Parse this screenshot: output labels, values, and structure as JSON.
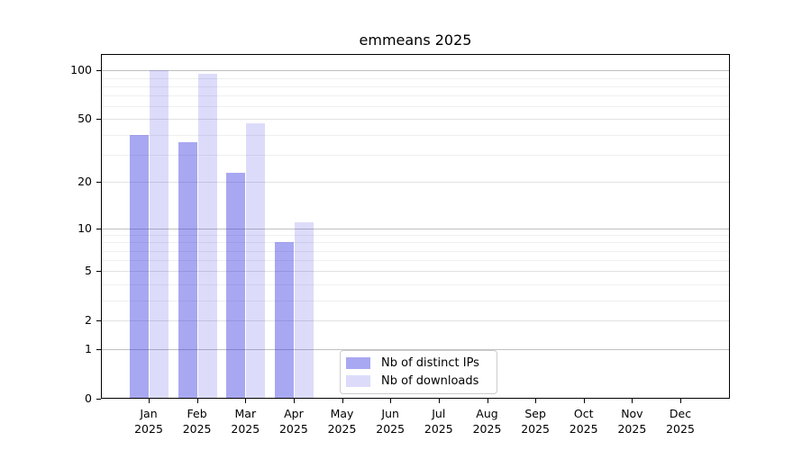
{
  "figure": {
    "background": "#ffffff"
  },
  "chart_data": {
    "type": "bar",
    "title": "emmeans 2025",
    "categories": [
      "Jan",
      "Feb",
      "Mar",
      "Apr",
      "May",
      "Jun",
      "Jul",
      "Aug",
      "Sep",
      "Oct",
      "Nov",
      "Dec"
    ],
    "year_label": "2025",
    "series": [
      {
        "name": "Nb of distinct IPs",
        "color": "rgba(37,37,222,0.40)",
        "color_hex": "#a8a8f2",
        "values": [
          40,
          36,
          23,
          8,
          0,
          0,
          0,
          0,
          0,
          0,
          0,
          0
        ]
      },
      {
        "name": "Nb of downloads",
        "color": "rgba(37,37,222,0.16)",
        "color_hex": "#dcdcfa",
        "values": [
          100,
          95,
          47,
          11,
          0,
          0,
          0,
          0,
          0,
          0,
          0,
          0
        ]
      }
    ],
    "yscale": "log10(1+v)",
    "ylim": [
      0,
      126
    ],
    "yticks": [
      100,
      50,
      20,
      10,
      5,
      2,
      1,
      0
    ],
    "minor_yticks": [
      90,
      80,
      70,
      60,
      40,
      30,
      9,
      8,
      7,
      6,
      4,
      3
    ],
    "grid": "horizontal",
    "legend_position": "lower center inside"
  },
  "colors": {
    "axis": "#000000",
    "grid_decade": "#c0c0c0",
    "grid_major": "#e1e1e1",
    "grid_minor": "#efefef",
    "legend_border": "#cccccc",
    "text": "#000000"
  }
}
